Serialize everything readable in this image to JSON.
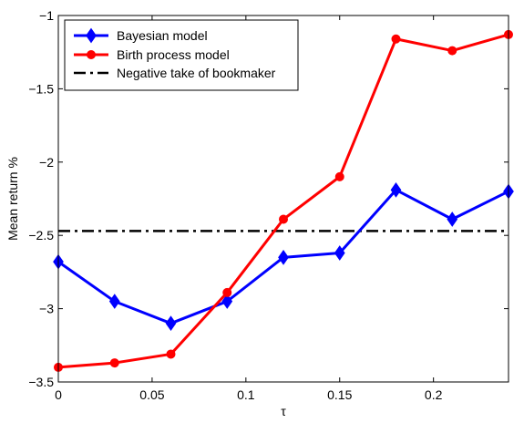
{
  "chart_data": {
    "type": "line",
    "title": "",
    "xlabel": "τ",
    "ylabel": "Mean return %",
    "xlim": [
      0,
      0.24
    ],
    "ylim": [
      -3.5,
      -1
    ],
    "xticks": [
      0,
      0.05,
      0.1,
      0.15,
      0.2
    ],
    "xtick_labels": [
      "0",
      "0.05",
      "0.1",
      "0.15",
      "0.2"
    ],
    "yticks": [
      -3.5,
      -3,
      -2.5,
      -2,
      -1.5,
      -1
    ],
    "ytick_labels": [
      "−3.5",
      "−3",
      "−2.5",
      "−2",
      "−1.5",
      "−1"
    ],
    "grid": false,
    "legend_position": "top-left",
    "x": [
      0,
      0.03,
      0.06,
      0.09,
      0.12,
      0.15,
      0.18,
      0.21,
      0.24
    ],
    "series": [
      {
        "name": "Bayesian model",
        "color": "#0000ff",
        "marker": "diamond",
        "values": [
          -2.68,
          -2.95,
          -3.1,
          -2.95,
          -2.65,
          -2.62,
          -2.19,
          -2.39,
          -2.2
        ]
      },
      {
        "name": "Birth process model",
        "color": "#ff0000",
        "marker": "circle",
        "values": [
          -3.4,
          -3.37,
          -3.31,
          -2.89,
          -2.39,
          -2.1,
          -1.16,
          -1.24,
          -1.13
        ]
      }
    ],
    "reference_line": {
      "name": "Negative take of bookmaker",
      "color": "#000000",
      "style": "dash-dot",
      "y": -2.47
    }
  }
}
